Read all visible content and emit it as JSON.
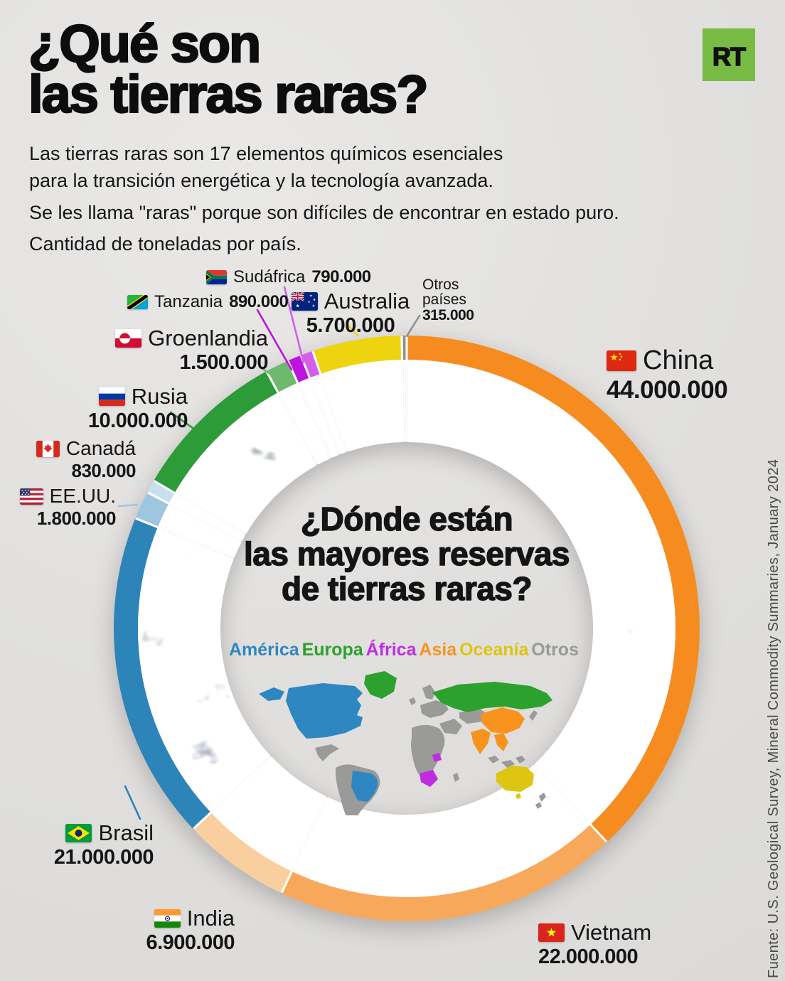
{
  "logo": {
    "text": "RT",
    "color": "#77BB44"
  },
  "header": {
    "title_line1": "¿Qué son",
    "title_line2": "las tierras raras?",
    "paragraph1_line1": "Las tierras raras son 17 elementos químicos esenciales",
    "paragraph1_line2": "para la transición energética y la tecnología avanzada.",
    "paragraph2": "Se les llama \"raras\" porque son difíciles de encontrar en estado puro.",
    "paragraph3": "Cantidad de toneladas por país."
  },
  "donut": {
    "center_title_line1": "¿Dónde están",
    "center_title_line2": "las mayores reservas",
    "center_title_line3": "de tierras raras?",
    "legend": [
      {
        "key": "america",
        "label": "América",
        "color": "#2E87C1"
      },
      {
        "key": "europa",
        "label": "Europa",
        "color": "#2DA12D"
      },
      {
        "key": "africa",
        "label": "África",
        "color": "#BE2EE0"
      },
      {
        "key": "asia",
        "label": "Asia",
        "color": "#F8941D"
      },
      {
        "key": "oceania",
        "label": "Oceanía",
        "color": "#DDC511"
      },
      {
        "key": "otros",
        "label": "Otros",
        "color": "#9A9A98"
      }
    ]
  },
  "chart_data": {
    "type": "pie",
    "title": "¿Dónde están las mayores reservas de tierras raras?",
    "unit": "toneladas",
    "source": "Fuente: U.S. Geological Survey, Mineral Commodity Summaries, January 2024",
    "segments": [
      {
        "key": "china",
        "country": "China",
        "value": 44000000,
        "label_value": "44.000.000",
        "continent": "Asia",
        "outer_color": "#F68C1F",
        "inner_color": "#E4430F"
      },
      {
        "key": "vietnam",
        "country": "Vietnam",
        "value": 22000000,
        "label_value": "22.000.000",
        "continent": "Asia",
        "outer_color": "#F8A85A",
        "inner_color": "#EF7D1C"
      },
      {
        "key": "india",
        "country": "India",
        "value": 6900000,
        "label_value": "6.900.000",
        "continent": "Asia",
        "outer_color": "#FACFA0",
        "inner_color": "#F7AE55"
      },
      {
        "key": "brasil",
        "country": "Brasil",
        "value": 21000000,
        "label_value": "21.000.000",
        "continent": "América",
        "outer_color": "#2C84B8",
        "inner_color": "#0D3E8C"
      },
      {
        "key": "eeuu",
        "country": "EE.UU.",
        "value": 1800000,
        "label_value": "1.800.000",
        "continent": "América",
        "outer_color": "#9EC7DF",
        "inner_color": "#4588BB"
      },
      {
        "key": "canada",
        "country": "Canadá",
        "value": 830000,
        "label_value": "830.000",
        "continent": "América",
        "outer_color": "#C8DFEC",
        "inner_color": "#8FBEDB"
      },
      {
        "key": "rusia",
        "country": "Rusia",
        "value": 10000000,
        "label_value": "10.000.000",
        "continent": "Europa",
        "outer_color": "#2D9B37",
        "inner_color": "#0B5E14"
      },
      {
        "key": "groenlandia",
        "country": "Groenlandia",
        "value": 1500000,
        "label_value": "1.500.000",
        "continent": "Europa",
        "outer_color": "#6FB96F",
        "inner_color": "#3E9148"
      },
      {
        "key": "tanzania",
        "country": "Tanzania",
        "value": 890000,
        "label_value": "890.000",
        "continent": "África",
        "outer_color": "#BD13DF",
        "inner_color": "#A309C2"
      },
      {
        "key": "sudafrica",
        "country": "Sudáfrica",
        "value": 790000,
        "label_value": "790.000",
        "continent": "África",
        "outer_color": "#D35FEA",
        "inner_color": "#BC30DA"
      },
      {
        "key": "australia",
        "country": "Australia",
        "value": 5700000,
        "label_value": "5.700.000",
        "continent": "Oceanía",
        "outer_color": "#EDD40E",
        "inner_color": "#F2E104"
      },
      {
        "key": "otros",
        "country": "Otros países",
        "value": 315000,
        "label_value": "315.000",
        "continent": "Otros",
        "outer_color": "#8E8E8C",
        "inner_color": "#70706E"
      }
    ]
  }
}
